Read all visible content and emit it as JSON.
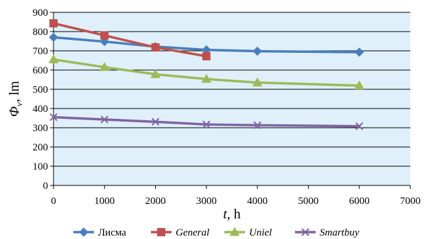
{
  "chart_data": {
    "type": "line",
    "x": [
      0,
      1000,
      2000,
      3000,
      4000,
      6000
    ],
    "xlim": [
      0,
      7000
    ],
    "ylim": [
      0,
      900
    ],
    "xticks": [
      "0",
      "1000",
      "2000",
      "3000",
      "4000",
      "5000",
      "6000",
      "7000"
    ],
    "yticks": [
      "0",
      "100",
      "200",
      "300",
      "400",
      "500",
      "600",
      "700",
      "800",
      "900"
    ],
    "xlabel": {
      "var": "t",
      "unit": ", h"
    },
    "ylabel": {
      "var": "Φ",
      "sub": "v",
      "unit": ", lm"
    },
    "grid": true,
    "plot_background": "#dff0fb",
    "legend_position": "bottom",
    "series": [
      {
        "name": "Лисма",
        "italic": false,
        "color": "#4a7ebb",
        "marker": "diamond",
        "values": [
          770,
          748,
          722,
          705,
          698,
          693
        ]
      },
      {
        "name": "General",
        "italic": true,
        "color": "#c0504d",
        "marker": "square",
        "values": [
          843,
          780,
          718,
          672,
          null,
          null
        ]
      },
      {
        "name": "Uniel",
        "italic": true,
        "color": "#9bbb59",
        "marker": "triangle",
        "values": [
          655,
          615,
          578,
          553,
          535,
          519
        ]
      },
      {
        "name": "Smartbuy",
        "italic": true,
        "color": "#8064a2",
        "marker": "x",
        "values": [
          355,
          343,
          331,
          317,
          313,
          308
        ]
      }
    ]
  }
}
